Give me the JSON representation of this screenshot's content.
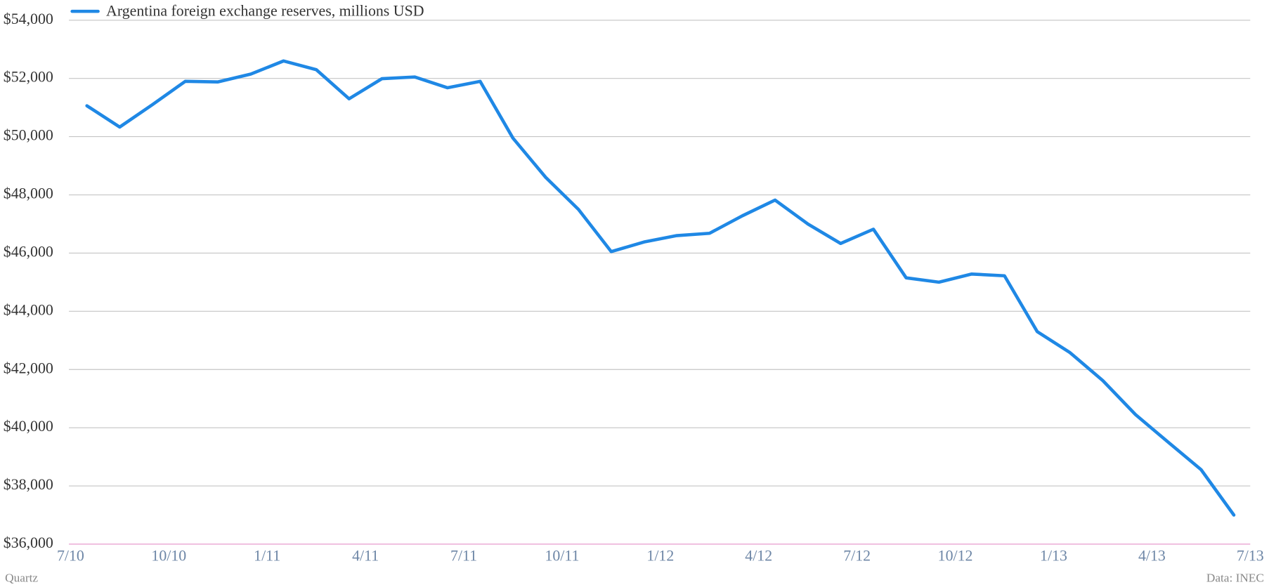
{
  "chart_data": {
    "type": "line",
    "x": [
      "2010-07",
      "2010-08",
      "2010-09",
      "2010-10",
      "2010-11",
      "2010-12",
      "2011-01",
      "2011-02",
      "2011-03",
      "2011-04",
      "2011-05",
      "2011-06",
      "2011-07",
      "2011-08",
      "2011-09",
      "2011-10",
      "2011-11",
      "2011-12",
      "2012-01",
      "2012-02",
      "2012-03",
      "2012-04",
      "2012-05",
      "2012-06",
      "2012-07",
      "2012-08",
      "2012-09",
      "2012-10",
      "2012-11",
      "2012-12",
      "2013-01",
      "2013-02",
      "2013-03",
      "2013-04",
      "2013-05",
      "2013-06"
    ],
    "series": [
      {
        "name": "Argentina foreign exchange reserves, millions USD",
        "color": "#1f88e5",
        "values": [
          51060,
          50330,
          51100,
          51900,
          51880,
          52150,
          52600,
          52300,
          51300,
          51990,
          52050,
          51680,
          51900,
          49950,
          48600,
          47500,
          46050,
          46380,
          46600,
          46680,
          47280,
          47820,
          47000,
          46330,
          46820,
          45150,
          45000,
          45280,
          45220,
          43300,
          42580,
          41620,
          40450,
          39500,
          38560,
          37000
        ]
      }
    ],
    "xlim": [
      "2010-07",
      "2013-07"
    ],
    "xticks": [
      {
        "value": "2010-07",
        "label": "7/10"
      },
      {
        "value": "2010-10",
        "label": "10/10"
      },
      {
        "value": "2011-01",
        "label": "1/11"
      },
      {
        "value": "2011-04",
        "label": "4/11"
      },
      {
        "value": "2011-07",
        "label": "7/11"
      },
      {
        "value": "2011-10",
        "label": "10/11"
      },
      {
        "value": "2012-01",
        "label": "1/12"
      },
      {
        "value": "2012-04",
        "label": "4/12"
      },
      {
        "value": "2012-07",
        "label": "7/12"
      },
      {
        "value": "2012-10",
        "label": "10/12"
      },
      {
        "value": "2013-01",
        "label": "1/13"
      },
      {
        "value": "2013-04",
        "label": "4/13"
      },
      {
        "value": "2013-07",
        "label": "7/13"
      }
    ],
    "ylim": [
      36000,
      54000
    ],
    "yticks": [
      {
        "value": 36000,
        "label": "$36,000"
      },
      {
        "value": 38000,
        "label": "$38,000"
      },
      {
        "value": 40000,
        "label": "$40,000"
      },
      {
        "value": 42000,
        "label": "$42,000"
      },
      {
        "value": 44000,
        "label": "$44,000"
      },
      {
        "value": 46000,
        "label": "$46,000"
      },
      {
        "value": 48000,
        "label": "$48,000"
      },
      {
        "value": 50000,
        "label": "$50,000"
      },
      {
        "value": 52000,
        "label": "$52,000"
      },
      {
        "value": 54000,
        "label": "$54,000"
      }
    ],
    "grid": true,
    "credit": "Quartz",
    "source": "Data: INEC"
  }
}
